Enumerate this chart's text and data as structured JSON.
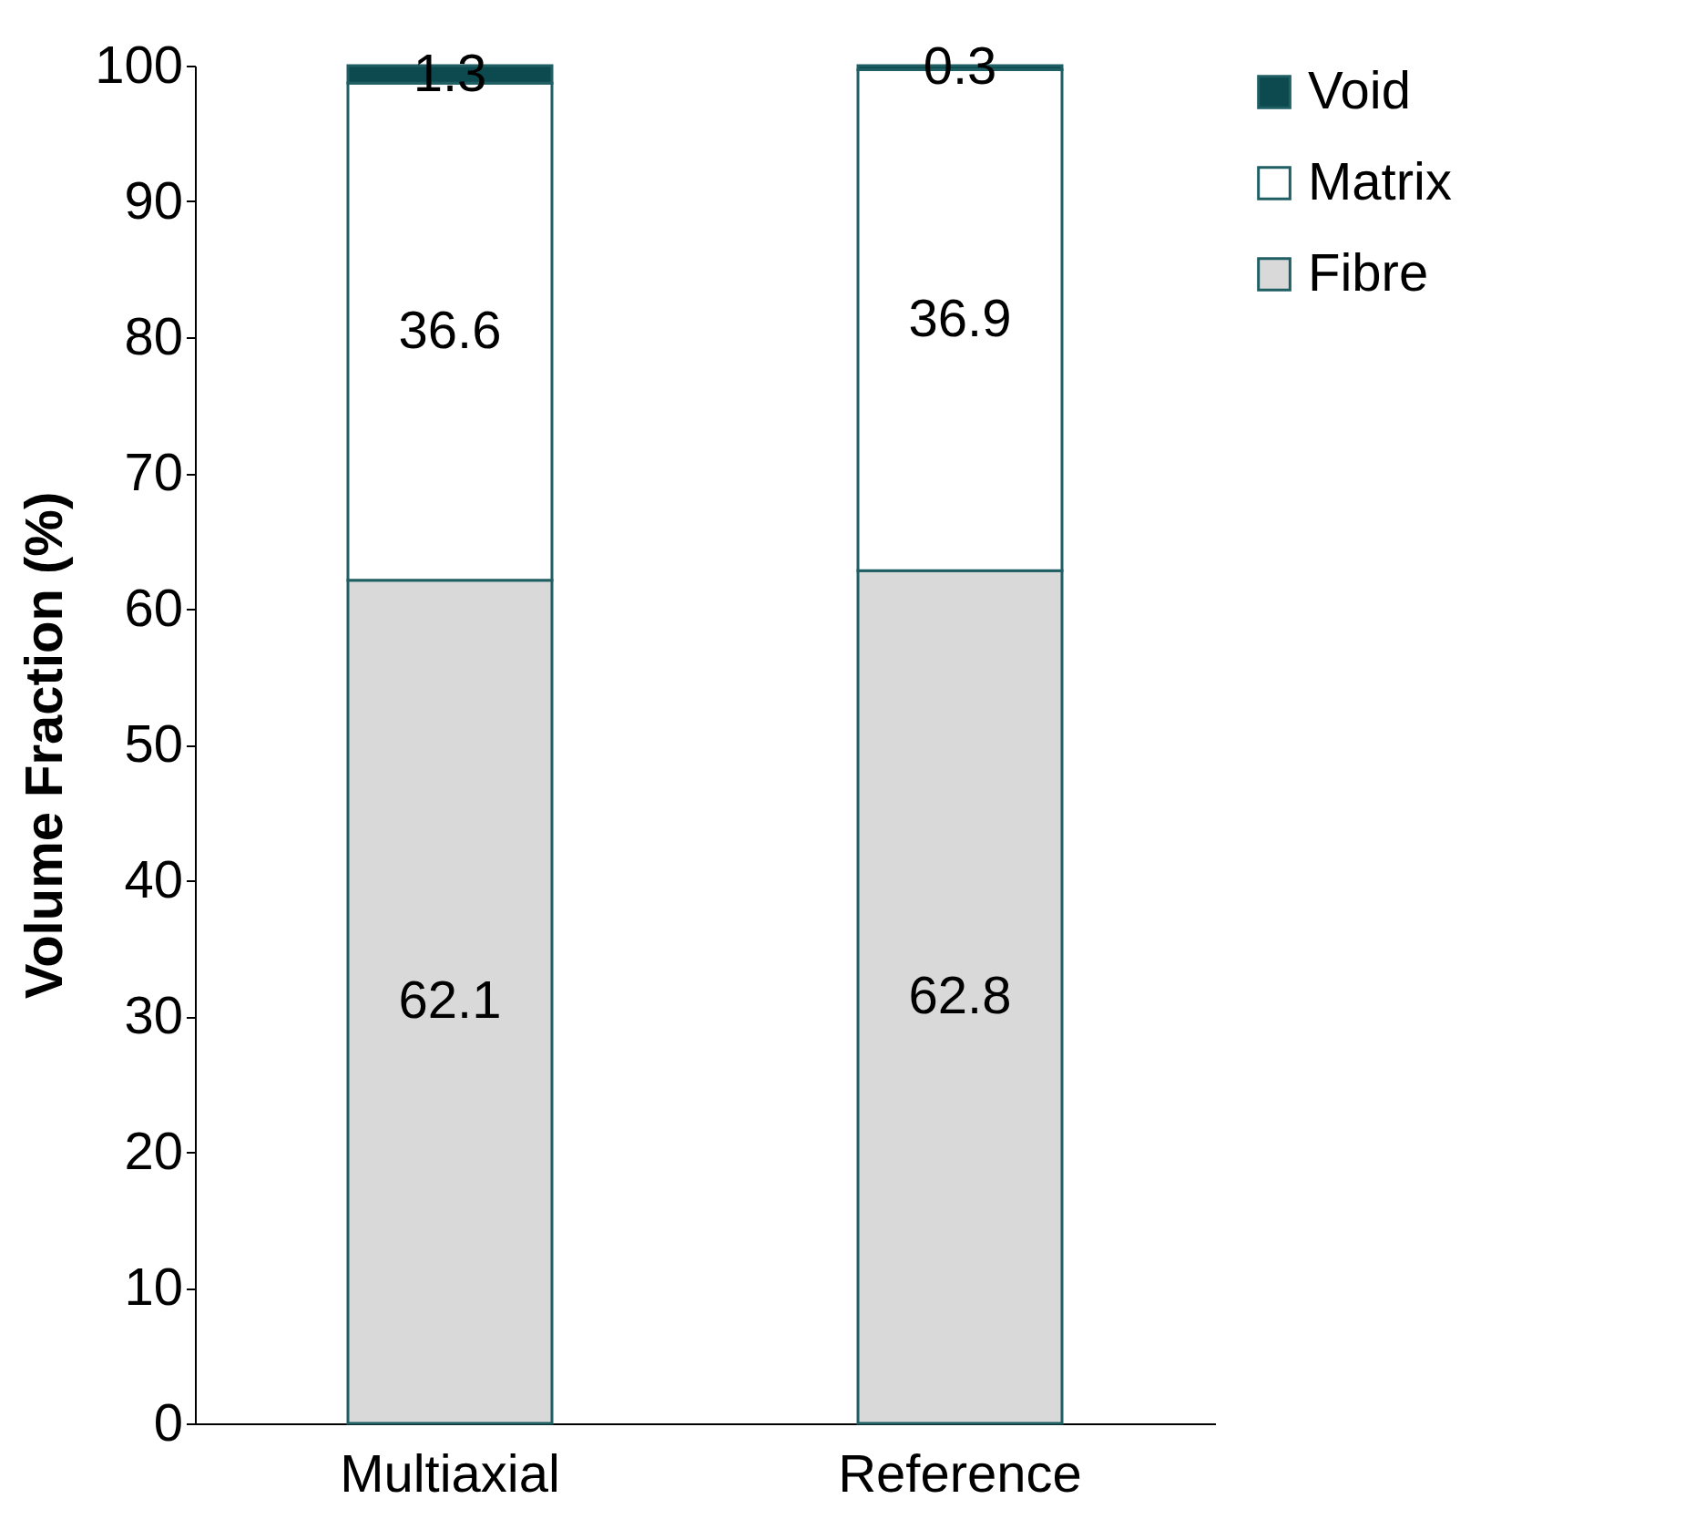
{
  "chart_data": {
    "type": "bar",
    "stacked": true,
    "ylabel": "Volume Fraction (%)",
    "categories": [
      "Multiaxial",
      "Reference"
    ],
    "series": [
      {
        "name": "Fibre",
        "color": "#d9d9d9",
        "values": [
          62.1,
          62.8
        ]
      },
      {
        "name": "Matrix",
        "color": "#ffffff",
        "values": [
          36.6,
          36.9
        ]
      },
      {
        "name": "Void",
        "color": "#0d4a4f",
        "values": [
          1.3,
          0.3
        ]
      }
    ],
    "ylim": [
      0,
      100
    ],
    "yticks": [
      0,
      10,
      20,
      30,
      40,
      50,
      60,
      70,
      80,
      90,
      100
    ],
    "grid": false,
    "legend": "right",
    "data_labels": true
  }
}
